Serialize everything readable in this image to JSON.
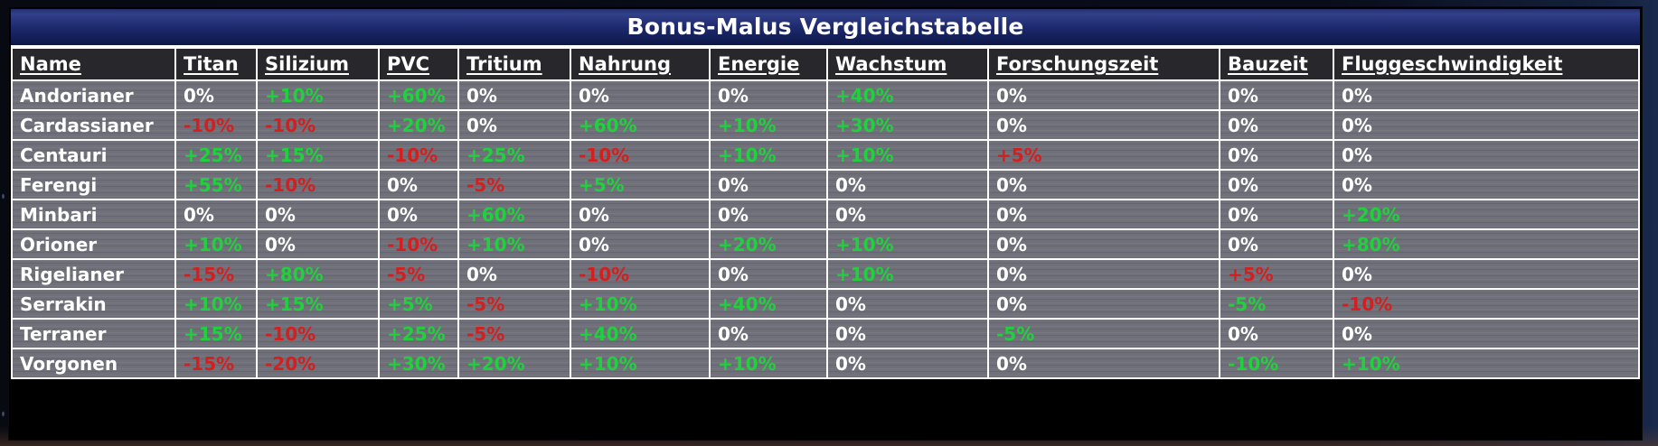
{
  "title": "Bonus-Malus Vergleichstabelle",
  "colors": {
    "bonus_green": "#1fd13c",
    "malus_red": "#d51f1f",
    "neutral_white": "#ffffff",
    "title_bar_top": "#32408a",
    "title_bar_bottom": "#0d1748",
    "header_background": "#28282c",
    "row_background": "#70707a"
  },
  "table": {
    "columns": [
      "Name",
      "Titan",
      "Silizium",
      "PVC",
      "Tritium",
      "Nahrung",
      "Energie",
      "Wachstum",
      "Forschungszeit",
      "Bauzeit",
      "Fluggeschwindigkeit"
    ],
    "rows": [
      {
        "name": "Andorianer",
        "values": [
          [
            "0%",
            "w"
          ],
          [
            "+10%",
            "g"
          ],
          [
            "+60%",
            "g"
          ],
          [
            "0%",
            "w"
          ],
          [
            "0%",
            "w"
          ],
          [
            "0%",
            "w"
          ],
          [
            "+40%",
            "g"
          ],
          [
            "0%",
            "w"
          ],
          [
            "0%",
            "w"
          ],
          [
            "0%",
            "w"
          ]
        ]
      },
      {
        "name": "Cardassianer",
        "values": [
          [
            "-10%",
            "r"
          ],
          [
            "-10%",
            "r"
          ],
          [
            "+20%",
            "g"
          ],
          [
            "0%",
            "w"
          ],
          [
            "+60%",
            "g"
          ],
          [
            "+10%",
            "g"
          ],
          [
            "+30%",
            "g"
          ],
          [
            "0%",
            "w"
          ],
          [
            "0%",
            "w"
          ],
          [
            "0%",
            "w"
          ]
        ]
      },
      {
        "name": "Centauri",
        "values": [
          [
            "+25%",
            "g"
          ],
          [
            "+15%",
            "g"
          ],
          [
            "-10%",
            "r"
          ],
          [
            "+25%",
            "g"
          ],
          [
            "-10%",
            "r"
          ],
          [
            "+10%",
            "g"
          ],
          [
            "+10%",
            "g"
          ],
          [
            "+5%",
            "r"
          ],
          [
            "0%",
            "w"
          ],
          [
            "0%",
            "w"
          ]
        ]
      },
      {
        "name": "Ferengi",
        "values": [
          [
            "+55%",
            "g"
          ],
          [
            "-10%",
            "r"
          ],
          [
            "0%",
            "w"
          ],
          [
            "-5%",
            "r"
          ],
          [
            "+5%",
            "g"
          ],
          [
            "0%",
            "w"
          ],
          [
            "0%",
            "w"
          ],
          [
            "0%",
            "w"
          ],
          [
            "0%",
            "w"
          ],
          [
            "0%",
            "w"
          ]
        ]
      },
      {
        "name": "Minbari",
        "values": [
          [
            "0%",
            "w"
          ],
          [
            "0%",
            "w"
          ],
          [
            "0%",
            "w"
          ],
          [
            "+60%",
            "g"
          ],
          [
            "0%",
            "w"
          ],
          [
            "0%",
            "w"
          ],
          [
            "0%",
            "w"
          ],
          [
            "0%",
            "w"
          ],
          [
            "0%",
            "w"
          ],
          [
            "+20%",
            "g"
          ]
        ]
      },
      {
        "name": "Orioner",
        "values": [
          [
            "+10%",
            "g"
          ],
          [
            "0%",
            "w"
          ],
          [
            "-10%",
            "r"
          ],
          [
            "+10%",
            "g"
          ],
          [
            "0%",
            "w"
          ],
          [
            "+20%",
            "g"
          ],
          [
            "+10%",
            "g"
          ],
          [
            "0%",
            "w"
          ],
          [
            "0%",
            "w"
          ],
          [
            "+80%",
            "g"
          ]
        ]
      },
      {
        "name": "Rigelianer",
        "values": [
          [
            "-15%",
            "r"
          ],
          [
            "+80%",
            "g"
          ],
          [
            "-5%",
            "r"
          ],
          [
            "0%",
            "w"
          ],
          [
            "-10%",
            "r"
          ],
          [
            "0%",
            "w"
          ],
          [
            "+10%",
            "g"
          ],
          [
            "0%",
            "w"
          ],
          [
            "+5%",
            "r"
          ],
          [
            "0%",
            "w"
          ]
        ]
      },
      {
        "name": "Serrakin",
        "values": [
          [
            "+10%",
            "g"
          ],
          [
            "+15%",
            "g"
          ],
          [
            "+5%",
            "g"
          ],
          [
            "-5%",
            "r"
          ],
          [
            "+10%",
            "g"
          ],
          [
            "+40%",
            "g"
          ],
          [
            "0%",
            "w"
          ],
          [
            "0%",
            "w"
          ],
          [
            "-5%",
            "g"
          ],
          [
            "-10%",
            "r"
          ]
        ]
      },
      {
        "name": "Terraner",
        "values": [
          [
            "+15%",
            "g"
          ],
          [
            "-10%",
            "r"
          ],
          [
            "+25%",
            "g"
          ],
          [
            "-5%",
            "r"
          ],
          [
            "+40%",
            "g"
          ],
          [
            "0%",
            "w"
          ],
          [
            "0%",
            "w"
          ],
          [
            "-5%",
            "g"
          ],
          [
            "0%",
            "w"
          ],
          [
            "0%",
            "w"
          ]
        ]
      },
      {
        "name": "Vorgonen",
        "values": [
          [
            "-15%",
            "r"
          ],
          [
            "-20%",
            "r"
          ],
          [
            "+30%",
            "g"
          ],
          [
            "+20%",
            "g"
          ],
          [
            "+10%",
            "g"
          ],
          [
            "+10%",
            "g"
          ],
          [
            "0%",
            "w"
          ],
          [
            "0%",
            "w"
          ],
          [
            "-10%",
            "g"
          ],
          [
            "+10%",
            "g"
          ]
        ]
      }
    ]
  }
}
